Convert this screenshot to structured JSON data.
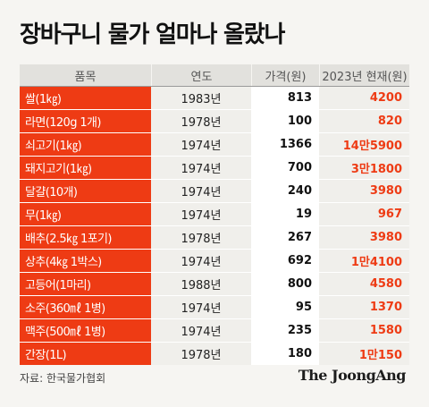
{
  "title": "장바구니 물가 얼마나 올랐나",
  "source": "자료: 한국물가협회",
  "logo": "The JoongAng",
  "chart_data": {
    "type": "table",
    "columns": [
      "품목",
      "연도",
      "가격(원)",
      "2023년 현재(원)"
    ],
    "rows": [
      {
        "item": "쌀(1㎏)",
        "year": "1983년",
        "price": "813",
        "now": "4200"
      },
      {
        "item": "라면(120g 1개)",
        "year": "1978년",
        "price": "100",
        "now": "820"
      },
      {
        "item": "쇠고기(1㎏)",
        "year": "1974년",
        "price": "1366",
        "now": "14만5900"
      },
      {
        "item": "돼지고기(1㎏)",
        "year": "1974년",
        "price": "700",
        "now": "3만1800"
      },
      {
        "item": "달걀(10개)",
        "year": "1974년",
        "price": "240",
        "now": "3980"
      },
      {
        "item": "무(1㎏)",
        "year": "1974년",
        "price": "19",
        "now": "967"
      },
      {
        "item": "배추(2.5㎏ 1포기)",
        "year": "1978년",
        "price": "267",
        "now": "3980"
      },
      {
        "item": "상추(4㎏ 1박스)",
        "year": "1974년",
        "price": "692",
        "now": "1만4100"
      },
      {
        "item": "고등어(1마리)",
        "year": "1988년",
        "price": "800",
        "now": "4580"
      },
      {
        "item": "소주(360㎖ 1병)",
        "year": "1974년",
        "price": "95",
        "now": "1370"
      },
      {
        "item": "맥주(500㎖ 1병)",
        "year": "1974년",
        "price": "235",
        "now": "1580"
      },
      {
        "item": "간장(1L)",
        "year": "1978년",
        "price": "180",
        "now": "1만150"
      }
    ]
  }
}
